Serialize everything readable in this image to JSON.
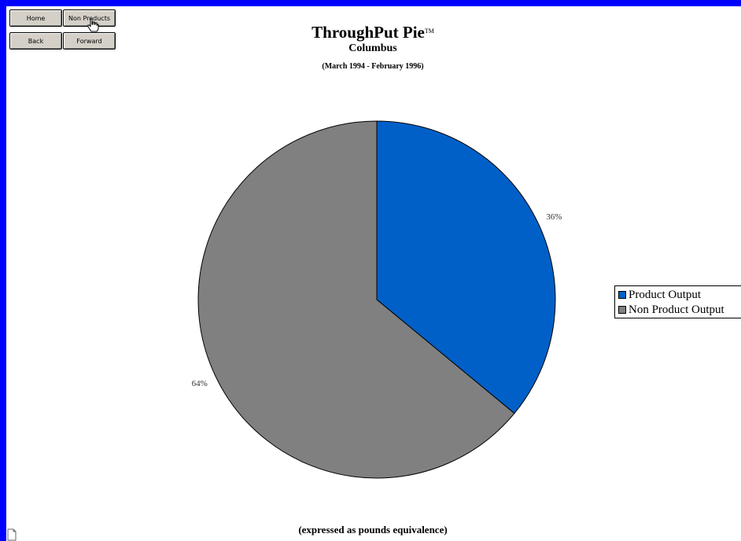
{
  "nav": {
    "home_label": "Home",
    "non_products_label": "Non Products",
    "back_label": "Back",
    "forward_label": "Forward"
  },
  "colors": {
    "page_border": "#0000ff",
    "product_output": "#0060c8",
    "non_product_output": "#808080"
  },
  "chart_data": {
    "type": "pie",
    "title": "ThroughPut Pie",
    "title_mark": "TM",
    "subtitle": "Columbus",
    "date_range": "(March 1994 - February 1996)",
    "footnote": "(expressed as pounds equivalence)",
    "legend_position": "right",
    "slices": [
      {
        "label": "Product Output",
        "value": 36,
        "display": "36%",
        "color": "#0060c8"
      },
      {
        "label": "Non Product Output",
        "value": 64,
        "display": "64%",
        "color": "#808080"
      }
    ]
  }
}
